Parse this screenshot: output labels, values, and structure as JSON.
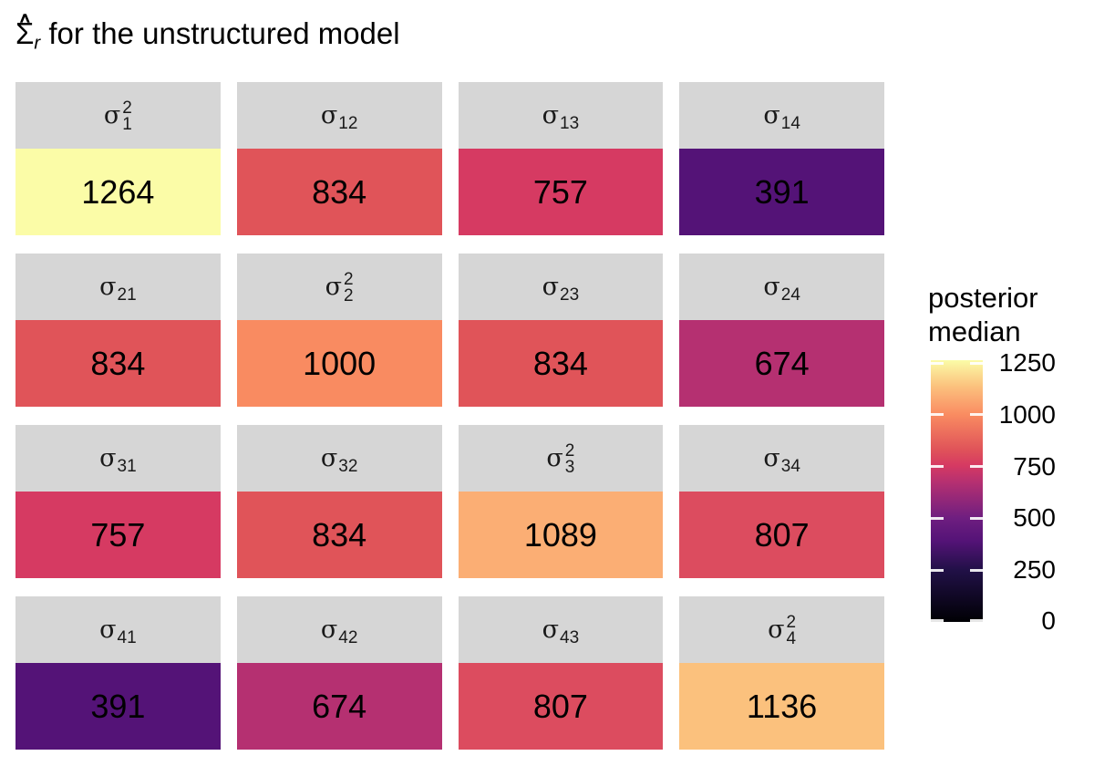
{
  "title": {
    "symbol": "Σ",
    "hat": "∧",
    "subscript": "r",
    "text": " for the unstructured model"
  },
  "legend": {
    "title": "posterior\nmedian",
    "ticks": [
      1250,
      1000,
      750,
      500,
      250,
      0
    ],
    "scale_domain": [
      0,
      1264
    ],
    "gradient_stops": [
      {
        "value": 0,
        "color": "#000004"
      },
      {
        "value": 250,
        "color": "#211047"
      },
      {
        "value": 391,
        "color": "#541377"
      },
      {
        "value": 500,
        "color": "#6E1E80"
      },
      {
        "value": 674,
        "color": "#B53071"
      },
      {
        "value": 757,
        "color": "#D63A62"
      },
      {
        "value": 834,
        "color": "#E05459"
      },
      {
        "value": 1000,
        "color": "#F98B61"
      },
      {
        "value": 1089,
        "color": "#FBAE74"
      },
      {
        "value": 1136,
        "color": "#FBC17D"
      },
      {
        "value": 1264,
        "color": "#FBFCA7"
      }
    ]
  },
  "chart_data": {
    "type": "heatmap",
    "title": "Σ̂_r for the unstructured model",
    "legend_title": "posterior median",
    "legend_position": "right",
    "palette": "magma",
    "scale_domain": [
      0,
      1264
    ],
    "colorbar_ticks": [
      1250,
      1000,
      750,
      500,
      250,
      0
    ],
    "rows": [
      "1",
      "2",
      "3",
      "4"
    ],
    "cols": [
      "1",
      "2",
      "3",
      "4"
    ],
    "matrix": [
      [
        1264,
        834,
        757,
        391
      ],
      [
        834,
        1000,
        834,
        674
      ],
      [
        757,
        834,
        1089,
        807
      ],
      [
        391,
        674,
        807,
        1136
      ]
    ],
    "cells": [
      {
        "name": "sigma-1-1",
        "base": "σ",
        "sup": "2",
        "sub": "1",
        "value": "1264",
        "color": "#FBFCA7"
      },
      {
        "name": "sigma-1-2",
        "base": "σ",
        "sup": null,
        "sub": "12",
        "value": "834",
        "color": "#E05459"
      },
      {
        "name": "sigma-1-3",
        "base": "σ",
        "sup": null,
        "sub": "13",
        "value": "757",
        "color": "#D63A62"
      },
      {
        "name": "sigma-1-4",
        "base": "σ",
        "sup": null,
        "sub": "14",
        "value": "391",
        "color": "#541377"
      },
      {
        "name": "sigma-2-1",
        "base": "σ",
        "sup": null,
        "sub": "21",
        "value": "834",
        "color": "#E05459"
      },
      {
        "name": "sigma-2-2",
        "base": "σ",
        "sup": "2",
        "sub": "2",
        "value": "1000",
        "color": "#F98B61"
      },
      {
        "name": "sigma-2-3",
        "base": "σ",
        "sup": null,
        "sub": "23",
        "value": "834",
        "color": "#E05459"
      },
      {
        "name": "sigma-2-4",
        "base": "σ",
        "sup": null,
        "sub": "24",
        "value": "674",
        "color": "#B53071"
      },
      {
        "name": "sigma-3-1",
        "base": "σ",
        "sup": null,
        "sub": "31",
        "value": "757",
        "color": "#D63A62"
      },
      {
        "name": "sigma-3-2",
        "base": "σ",
        "sup": null,
        "sub": "32",
        "value": "834",
        "color": "#E05459"
      },
      {
        "name": "sigma-3-3",
        "base": "σ",
        "sup": "2",
        "sub": "3",
        "value": "1089",
        "color": "#FBAE74"
      },
      {
        "name": "sigma-3-4",
        "base": "σ",
        "sup": null,
        "sub": "34",
        "value": "807",
        "color": "#DC4C5F"
      },
      {
        "name": "sigma-4-1",
        "base": "σ",
        "sup": null,
        "sub": "41",
        "value": "391",
        "color": "#541377"
      },
      {
        "name": "sigma-4-2",
        "base": "σ",
        "sup": null,
        "sub": "42",
        "value": "674",
        "color": "#B53071"
      },
      {
        "name": "sigma-4-3",
        "base": "σ",
        "sup": null,
        "sub": "43",
        "value": "807",
        "color": "#DC4C5F"
      },
      {
        "name": "sigma-4-4",
        "base": "σ",
        "sup": "2",
        "sub": "4",
        "value": "1136",
        "color": "#FBC17D"
      }
    ]
  }
}
